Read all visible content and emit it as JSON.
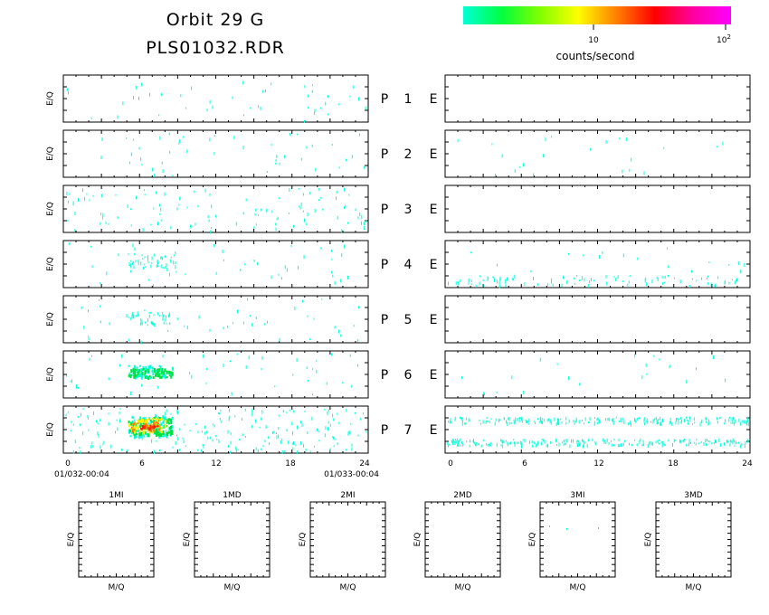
{
  "header": {
    "title_line1": "Orbit 29 G",
    "title_line2": "PLS01032.RDR"
  },
  "colorbar": {
    "tick_10": "10",
    "tick_100_base": "10",
    "tick_100_exp": "2",
    "unit": "counts/second",
    "colors": [
      "#00ffd8",
      "#00ff40",
      "#80ff00",
      "#ffff00",
      "#ff8000",
      "#ff0000",
      "#ff00a0",
      "#ff00ff"
    ]
  },
  "rows": [
    "1",
    "2",
    "3",
    "4",
    "5",
    "6",
    "7"
  ],
  "row_prefix": "P",
  "row_suffix": "E",
  "ylabel": "E/Q",
  "x_ticks": [
    "0",
    "6",
    "12",
    "18",
    "24"
  ],
  "time_start": "01/032-00:04",
  "time_end": "01/033-00:04",
  "bottom_panels": [
    "1MI",
    "1MD",
    "2MI",
    "2MD",
    "3MI",
    "3MD"
  ],
  "bottom_xlabel": "M/Q",
  "bottom_ylabel": "E/Q",
  "chart_data": {
    "type": "heatmap",
    "title": "Orbit 29 G PLS01032.RDR",
    "x_range": [
      0,
      24
    ],
    "x_ticks": [
      0,
      6,
      12,
      18,
      24
    ],
    "colorbar_label": "counts/second",
    "colorbar_scale": "log",
    "colorbar_ticks": [
      10,
      100
    ],
    "panels_left_P": [
      {
        "row": 1,
        "activity": "sparse",
        "hot_window_hours": null,
        "peak_level": "low"
      },
      {
        "row": 2,
        "activity": "sparse",
        "hot_window_hours": null,
        "peak_level": "low"
      },
      {
        "row": 3,
        "activity": "moderate",
        "hot_window_hours": null,
        "peak_level": "low"
      },
      {
        "row": 4,
        "activity": "sparse",
        "hot_window_hours": [
          5,
          9
        ],
        "peak_level": "low"
      },
      {
        "row": 5,
        "activity": "sparse",
        "hot_window_hours": [
          5,
          8.5
        ],
        "peak_level": "low"
      },
      {
        "row": 6,
        "activity": "sparse",
        "hot_window_hours": [
          5,
          8.5
        ],
        "peak_level": "medium"
      },
      {
        "row": 7,
        "activity": "dense",
        "hot_window_hours": [
          5,
          8.5
        ],
        "peak_level": "high"
      }
    ],
    "panels_right_E": [
      {
        "row": 1,
        "activity": "none"
      },
      {
        "row": 2,
        "activity": "sparse"
      },
      {
        "row": 3,
        "activity": "none"
      },
      {
        "row": 4,
        "activity": "moderate",
        "band": "low energy"
      },
      {
        "row": 5,
        "activity": "none"
      },
      {
        "row": 6,
        "activity": "sparse"
      },
      {
        "row": 7,
        "activity": "dense",
        "band": "two bands"
      }
    ],
    "mass_panels": [
      {
        "name": "1MI",
        "activity": "none"
      },
      {
        "name": "1MD",
        "activity": "none"
      },
      {
        "name": "2MI",
        "activity": "none"
      },
      {
        "name": "2MD",
        "activity": "none"
      },
      {
        "name": "3MI",
        "activity": "sparse"
      },
      {
        "name": "3MD",
        "activity": "none"
      }
    ]
  }
}
